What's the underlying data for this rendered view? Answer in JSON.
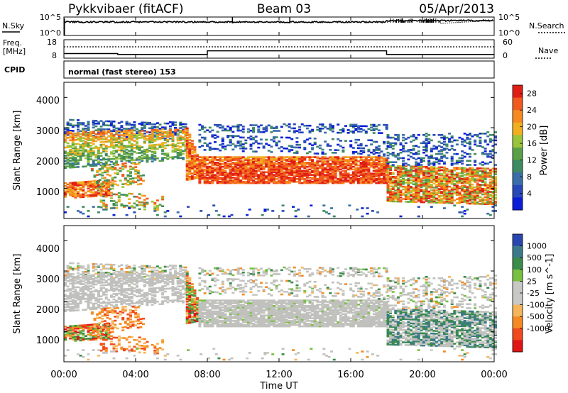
{
  "header": {
    "station": "Pykkvibaer (fitACF)",
    "beam": "Beam 03",
    "date": "05/Apr/2013"
  },
  "strips": {
    "nsky_label": "N.Sky",
    "nsky_ticks": [
      "10^5",
      "10^0"
    ],
    "nsearch_label": "N.Search",
    "nsearch_ticks": [
      "10^5",
      "10^0"
    ],
    "freq_label_1": "Freq.",
    "freq_label_2": "[MHz]",
    "freq_ticks": [
      "18",
      "8"
    ],
    "nave_label": "Nave",
    "nave_ticks": [
      "60",
      "0"
    ],
    "cpid_label": "CPID",
    "cpid_value": "normal (fast stereo) 153"
  },
  "x_axis": {
    "title": "Time UT",
    "ticks": [
      "00:00",
      "04:00",
      "08:00",
      "12:00",
      "16:00",
      "20:00",
      "00:00"
    ]
  },
  "colors": {
    "power": [
      "#0a1ed8",
      "#2848b8",
      "#3a6ea8",
      "#3e8a62",
      "#5aa046",
      "#9ac43a",
      "#f0b020",
      "#f58a20",
      "#f05a1e",
      "#e01e14"
    ],
    "velocity": [
      "#e01414",
      "#f04a1e",
      "#f58a22",
      "#f5b65a",
      "#c8c8c4",
      "#c8c8c4",
      "#78c040",
      "#3a8c4a",
      "#3a7a8a",
      "#2a46b0"
    ],
    "ground_scatter": "#c0c0bc"
  },
  "chart_data": [
    {
      "type": "line",
      "name": "N.Sky",
      "x_label": "Time UT",
      "xlim": [
        "00:00",
        "24:00"
      ],
      "scale": "log",
      "ylim": [
        "10^0",
        "10^5"
      ],
      "description_values": {
        "hours": [
          0,
          4,
          8,
          12,
          16,
          18,
          20,
          24
        ],
        "level_log10": [
          4.2,
          4.2,
          4.2,
          4.2,
          4.2,
          4.4,
          4.6,
          4.5
        ]
      }
    },
    {
      "type": "line",
      "name": "Freq.",
      "ylabel": "[MHz]",
      "ylim": [
        8,
        18
      ],
      "x": [
        0,
        3.0,
        3.0,
        8.0,
        8.0,
        18.0,
        18.0,
        24.0
      ],
      "values": [
        10.5,
        10.5,
        10.0,
        10.0,
        12.0,
        12.0,
        10.0,
        10.0
      ]
    },
    {
      "type": "heatmap",
      "name": "Power",
      "ylabel": "Slant Range [km]",
      "xlabel": "Time UT",
      "xlim": [
        0,
        24
      ],
      "ylim": [
        0,
        4500
      ],
      "y_ticks": [
        "1000",
        "2000",
        "3000",
        "4000"
      ],
      "colorbar_label": "Power [dB]",
      "colorbar_ticks": [
        "4",
        "8",
        "12",
        "16",
        "20",
        "24",
        "28"
      ],
      "colorbar_range": [
        0,
        30
      ]
    },
    {
      "type": "heatmap",
      "name": "Velocity",
      "ylabel": "Slant Range [km]",
      "xlabel": "Time UT",
      "xlim": [
        0,
        24
      ],
      "ylim": [
        0,
        4500
      ],
      "y_ticks": [
        "1000",
        "2000",
        "3000",
        "4000"
      ],
      "colorbar_label": "Velocity [m s^-1]",
      "colorbar_ticks": [
        "1000",
        "500",
        "100",
        "25",
        "-25",
        "-100",
        "-500",
        "-1000"
      ]
    }
  ]
}
